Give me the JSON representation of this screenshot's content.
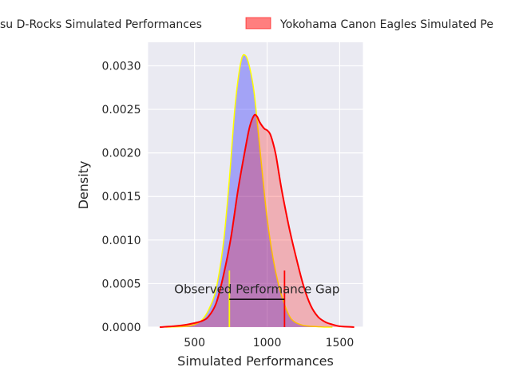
{
  "chart_data": {
    "type": "area",
    "title": "",
    "xlabel": "Simulated Performances",
    "ylabel": "Density",
    "xlim": [
      180,
      1660
    ],
    "ylim": [
      0,
      0.00327
    ],
    "grid": true,
    "background_color": "#eaeaf2",
    "legend_placement": "top",
    "x_ticks": [
      500,
      1000,
      1500
    ],
    "x_tick_labels": [
      "500",
      "1000",
      "1500"
    ],
    "y_ticks": [
      0,
      0.0005,
      0.001,
      0.0015,
      0.002,
      0.0025,
      0.003
    ],
    "y_tick_labels": [
      "0.0000",
      "0.0005",
      "0.0010",
      "0.0015",
      "0.0020",
      "0.0025",
      "0.0030"
    ],
    "series": [
      {
        "name": "Tokyo Gas / Matsu D-Rocks Simulated Performances",
        "legend_label": "su D-Rocks Simulated Performances",
        "fill_color": "#0000ff",
        "fill_opacity": 0.3,
        "line_color": "#ffff00",
        "x": [
          300,
          400,
          450,
          500,
          550,
          600,
          650,
          700,
          740,
          780,
          820,
          850,
          880,
          910,
          940,
          970,
          1000,
          1040,
          1080,
          1120,
          1160,
          1200,
          1250,
          1300,
          1350,
          1400,
          1450
        ],
        "y": [
          0.0,
          5e-06,
          1e-05,
          3e-05,
          8e-05,
          0.00021,
          0.00045,
          0.00098,
          0.0017,
          0.00255,
          0.00305,
          0.00312,
          0.00298,
          0.0027,
          0.00222,
          0.00172,
          0.00125,
          0.0008,
          0.00048,
          0.00026,
          0.00011,
          5e-05,
          2e-05,
          1e-05,
          5e-06,
          0.0,
          0.0
        ]
      },
      {
        "name": "Yokohama Canon Eagles Simulated Performances",
        "legend_label": "Yokohama Canon Eagles Simulated Pe",
        "fill_color": "#ff0000",
        "fill_opacity": 0.25,
        "line_color": "#ff0000",
        "x": [
          260,
          350,
          450,
          550,
          600,
          650,
          700,
          750,
          800,
          850,
          880,
          910,
          930,
          950,
          980,
          1000,
          1020,
          1040,
          1060,
          1080,
          1100,
          1130,
          1160,
          1200,
          1250,
          1300,
          1350,
          1400,
          1450,
          1500,
          1550,
          1600
        ],
        "y": [
          0.0,
          1e-05,
          3e-05,
          7e-05,
          0.00013,
          0.00028,
          0.0006,
          0.00102,
          0.00158,
          0.00205,
          0.0023,
          0.00243,
          0.00242,
          0.00235,
          0.00228,
          0.00226,
          0.00222,
          0.00212,
          0.00198,
          0.00178,
          0.00158,
          0.00132,
          0.00108,
          0.0008,
          0.00048,
          0.00025,
          0.00012,
          6e-05,
          3e-05,
          1e-05,
          5e-06,
          0.0
        ]
      }
    ],
    "vlines": [
      {
        "x": 740,
        "y_max": 0.00065,
        "color": "#ffff00"
      },
      {
        "x": 1120,
        "y_max": 0.00065,
        "color": "#ff0000"
      }
    ],
    "gap_line": {
      "x_start": 740,
      "x_end": 1120,
      "y": 0.00032,
      "color": "#000000"
    },
    "annotation": {
      "text": "Observed Performance Gap",
      "x": 930,
      "y": 0.00039
    }
  }
}
